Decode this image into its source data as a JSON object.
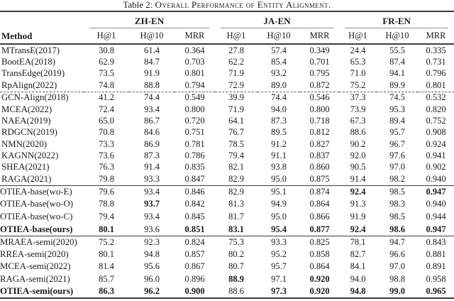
{
  "title": {
    "prefix": "Table 2:",
    "caption": "Overall Performance of Entity Alignment."
  },
  "table": {
    "method_header": "Method",
    "groups": [
      {
        "label": "ZH-EN"
      },
      {
        "label": "JA-EN"
      },
      {
        "label": "FR-EN"
      }
    ],
    "metric_headers": [
      "H@1",
      "H@10",
      "MRR"
    ],
    "sections": [
      {
        "name": "baselines",
        "rows": [
          {
            "method": "MTransE(2017)",
            "values": [
              "30.8",
              "61.4",
              "0.364",
              "27.8",
              "57.4",
              "0.349",
              "24.4",
              "55.5",
              "0.335"
            ],
            "bold": [],
            "method_bold": false,
            "dashed_top": false
          },
          {
            "method": "BootEA(2018)",
            "values": [
              "62.9",
              "84.7",
              "0.703",
              "62.2",
              "85.4",
              "0.701",
              "65.3",
              "87.4",
              "0.731"
            ],
            "bold": [],
            "method_bold": false,
            "dashed_top": false
          },
          {
            "method": "TransEdge(2019)",
            "values": [
              "73.5",
              "91.9",
              "0.801",
              "71.9",
              "93.2",
              "0.795",
              "71.0",
              "94.1",
              "0.796"
            ],
            "bold": [],
            "method_bold": false,
            "dashed_top": false
          },
          {
            "method": "RpAlign(2022)",
            "values": [
              "74.8",
              "88.8",
              "0.794",
              "72.9",
              "89.0",
              "0.872",
              "75.2",
              "89.9",
              "0.801"
            ],
            "bold": [],
            "method_bold": false,
            "dashed_top": false
          },
          {
            "method": "GCN-Align(2018)",
            "values": [
              "41.2",
              "74.4",
              "0.549",
              "39.9",
              "74.4",
              "0.546",
              "37.3",
              "74.5",
              "0.532"
            ],
            "bold": [],
            "method_bold": false,
            "dashed_top": true
          },
          {
            "method": "MCEA(2022)",
            "values": [
              "72.4",
              "93.4",
              "0.800",
              "71.9",
              "94.0",
              "0.800",
              "73.9",
              "95.3",
              "0.820"
            ],
            "bold": [],
            "method_bold": false,
            "dashed_top": false
          },
          {
            "method": "NAEA(2019)",
            "values": [
              "65.0",
              "86.7",
              "0.720",
              "64.1",
              "87.3",
              "0.718",
              "67.3",
              "89.4",
              "0.752"
            ],
            "bold": [],
            "method_bold": false,
            "dashed_top": false
          },
          {
            "method": "RDGCN(2019)",
            "values": [
              "70.8",
              "84.6",
              "0.751",
              "76.7",
              "89.5",
              "0.812",
              "88.6",
              "95.7",
              "0.908"
            ],
            "bold": [],
            "method_bold": false,
            "dashed_top": false
          },
          {
            "method": "NMN(2020)",
            "values": [
              "73.3",
              "86.9",
              "0.781",
              "78.5",
              "91.2",
              "0.827",
              "90.2",
              "96.7",
              "0.924"
            ],
            "bold": [],
            "method_bold": false,
            "dashed_top": false
          },
          {
            "method": "KAGNN(2022)",
            "values": [
              "73.6",
              "87.3",
              "0.786",
              "79.4",
              "91.1",
              "0.837",
              "92.0",
              "97.6",
              "0.941"
            ],
            "bold": [],
            "method_bold": false,
            "dashed_top": false
          },
          {
            "method": "SHEA(2021)",
            "values": [
              "76.3",
              "91.4",
              "0.835",
              "82.1",
              "93.8",
              "0.860",
              "90.5",
              "97.0",
              "0.902"
            ],
            "bold": [],
            "method_bold": false,
            "dashed_top": false
          },
          {
            "method": "RAGA(2021)",
            "values": [
              "79.8",
              "93.3",
              "0.847",
              "82.9",
              "95.0",
              "0.875",
              "91.4",
              "98.2",
              "0.940"
            ],
            "bold": [],
            "method_bold": false,
            "dashed_top": false
          }
        ]
      },
      {
        "name": "otiea-base-ablation",
        "rows": [
          {
            "method": "OTIEA-base(wo-E)",
            "values": [
              "79.6",
              "93.4",
              "0.846",
              "82.9",
              "95.1",
              "0.874",
              "92.4",
              "98.5",
              "0.947"
            ],
            "bold": [
              6,
              8
            ],
            "method_bold": false,
            "dashed_top": false
          },
          {
            "method": "OTIEA-base(wo-O)",
            "values": [
              "78.8",
              "93.7",
              "0.842",
              "81.3",
              "94.9",
              "0.864",
              "91.3",
              "98.3",
              "0.940"
            ],
            "bold": [
              1
            ],
            "method_bold": false,
            "dashed_top": false
          },
          {
            "method": "OTIEA-base(wo-C)",
            "values": [
              "79.4",
              "93.4",
              "0.845",
              "81.7",
              "95.0",
              "0.866",
              "91.9",
              "98.5",
              "0.944"
            ],
            "bold": [],
            "method_bold": false,
            "dashed_top": false
          },
          {
            "method": "OTIEA-base(ours)",
            "values": [
              "80.1",
              "93.6",
              "0.851",
              "83.1",
              "95.4",
              "0.877",
              "92.4",
              "98.6",
              "0.947"
            ],
            "bold": [
              0,
              2,
              3,
              4,
              5,
              6,
              7,
              8
            ],
            "method_bold": true,
            "dashed_top": false
          }
        ]
      },
      {
        "name": "semi-supervised",
        "rows": [
          {
            "method": "MRAEA-semi(2020)",
            "values": [
              "75.2",
              "92.3",
              "0.824",
              "75.3",
              "93.3",
              "0.825",
              "78.1",
              "94.7",
              "0.843"
            ],
            "bold": [],
            "method_bold": false,
            "dashed_top": false
          },
          {
            "method": "RREA-semi(2020)",
            "values": [
              "80.1",
              "94.8",
              "0.857",
              "80.2",
              "95.2",
              "0.858",
              "82.7",
              "96.6",
              "0.881"
            ],
            "bold": [],
            "method_bold": false,
            "dashed_top": false
          },
          {
            "method": "MCEA-semi(2022)",
            "values": [
              "81.4",
              "95.6",
              "0.867",
              "80.7",
              "95.7",
              "0.864",
              "84.1",
              "97.0",
              "0.891"
            ],
            "bold": [],
            "method_bold": false,
            "dashed_top": false
          },
          {
            "method": "RAGA-semi(2021)",
            "values": [
              "85.7",
              "96.0",
              "0.896",
              "88.9",
              "97.1",
              "0.920",
              "94.0",
              "98.8",
              "0.958"
            ],
            "bold": [
              3,
              5
            ],
            "method_bold": false,
            "dashed_top": false
          },
          {
            "method": "OTIEA-semi(ours)",
            "values": [
              "86.3",
              "96.2",
              "0.900",
              "88.6",
              "97.3",
              "0.920",
              "94.8",
              "99.0",
              "0.965"
            ],
            "bold": [
              0,
              1,
              2,
              4,
              5,
              6,
              7,
              8
            ],
            "method_bold": true,
            "dashed_top": false
          }
        ]
      }
    ]
  }
}
